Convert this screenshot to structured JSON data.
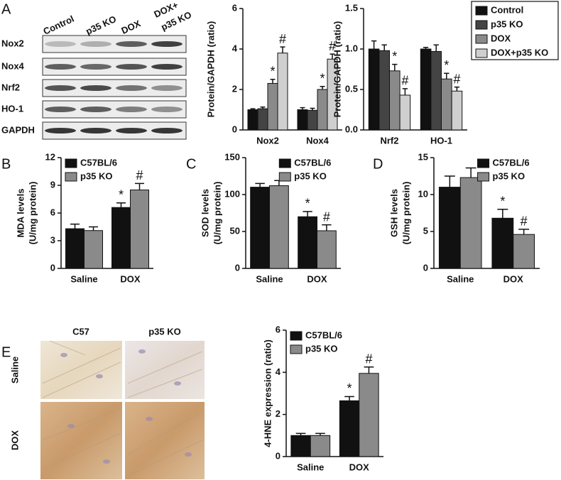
{
  "panel_labels": [
    "A",
    "B",
    "C",
    "D",
    "E"
  ],
  "blot": {
    "columns": [
      [
        "Control"
      ],
      [
        "p35 KO"
      ],
      [
        "DOX"
      ],
      [
        "DOX+",
        "p35 KO"
      ]
    ],
    "rows": [
      "Nox2",
      "Nox4",
      "Nrf2",
      "HO-1",
      "GAPDH"
    ]
  },
  "histology": {
    "columns": [
      "C57",
      "p35 KO"
    ],
    "rows": [
      "Saline",
      "DOX"
    ]
  },
  "chart_data": [
    {
      "type": "bar",
      "ylabel": [
        "Protein/GAPDH (ratio)"
      ],
      "categories": [
        "Nox2",
        "Nox4"
      ],
      "ylim": [
        0,
        6
      ],
      "yticks": [
        0,
        2,
        4,
        6
      ],
      "legend": "none",
      "series": [
        {
          "color": "#111111",
          "values": [
            1.0,
            1.0
          ],
          "errors": [
            0.05,
            0.1
          ],
          "annotations": [
            null,
            null
          ]
        },
        {
          "color": "#444444",
          "values": [
            1.05,
            0.97
          ],
          "errors": [
            0.08,
            0.1
          ],
          "annotations": [
            null,
            null
          ]
        },
        {
          "color": "#8a8a8a",
          "values": [
            2.3,
            2.0
          ],
          "errors": [
            0.2,
            0.15
          ],
          "annotations": [
            "*",
            "*"
          ]
        },
        {
          "color": "#cfcfcf",
          "values": [
            3.8,
            3.5
          ],
          "errors": [
            0.3,
            0.25
          ],
          "annotations": [
            "#",
            "#"
          ]
        }
      ]
    },
    {
      "type": "bar",
      "ylabel": [
        "Protein/GAPDH (ratio)"
      ],
      "categories": [
        "Nrf2",
        "HO-1"
      ],
      "ylim": [
        0,
        1.5
      ],
      "yticks": [
        {
          "value": 0,
          "label": "0.0"
        },
        0.5,
        {
          "value": 1,
          "label": "1.0"
        },
        1.5
      ],
      "legend": "outside-right",
      "series": [
        {
          "name": "Control",
          "color": "#111111",
          "values": [
            1.0,
            1.0
          ],
          "errors": [
            0.1,
            0.02
          ],
          "annotations": [
            null,
            null
          ]
        },
        {
          "name": "p35 KO",
          "color": "#444444",
          "values": [
            0.98,
            0.97
          ],
          "errors": [
            0.07,
            0.08
          ],
          "annotations": [
            null,
            null
          ]
        },
        {
          "name": "DOX",
          "color": "#8a8a8a",
          "values": [
            0.73,
            0.63
          ],
          "errors": [
            0.08,
            0.07
          ],
          "annotations": [
            "*",
            "*"
          ]
        },
        {
          "name": "DOX+p35 KO",
          "color": "#cfcfcf",
          "values": [
            0.43,
            0.48
          ],
          "errors": [
            0.08,
            0.05
          ],
          "annotations": [
            "#",
            "#"
          ]
        }
      ]
    },
    {
      "type": "bar",
      "ylabel": [
        "MDA levels",
        "(U/mg protein)"
      ],
      "categories": [
        "Saline",
        "DOX"
      ],
      "ylim": [
        0,
        12
      ],
      "yticks": [
        0,
        3,
        6,
        9,
        12
      ],
      "legend": "top-left",
      "series": [
        {
          "name": "C57BL/6",
          "color": "#111111",
          "values": [
            4.3,
            6.6
          ],
          "errors": [
            0.5,
            0.5
          ],
          "annotations": [
            null,
            "*"
          ]
        },
        {
          "name": "p35 KO",
          "color": "#8a8a8a",
          "values": [
            4.1,
            8.5
          ],
          "errors": [
            0.4,
            0.7
          ],
          "annotations": [
            null,
            "#"
          ]
        }
      ]
    },
    {
      "type": "bar",
      "ylabel": [
        "SOD levels",
        "(U/mg protein)"
      ],
      "categories": [
        "Saline",
        "DOX"
      ],
      "ylim": [
        0,
        150
      ],
      "yticks": [
        0,
        50,
        100,
        150
      ],
      "legend": "top-right",
      "series": [
        {
          "name": "C57BL/6",
          "color": "#111111",
          "values": [
            110,
            70
          ],
          "errors": [
            5,
            7
          ],
          "annotations": [
            null,
            "*"
          ]
        },
        {
          "name": "p35 KO",
          "color": "#8a8a8a",
          "values": [
            112,
            51
          ],
          "errors": [
            7,
            8
          ],
          "annotations": [
            null,
            "#"
          ]
        }
      ]
    },
    {
      "type": "bar",
      "ylabel": [
        "GSH levels",
        "(U/mg protein)"
      ],
      "categories": [
        "Saline",
        "DOX"
      ],
      "ylim": [
        0,
        15
      ],
      "yticks": [
        0,
        5,
        10,
        15
      ],
      "legend": "top-right",
      "series": [
        {
          "name": "C57BL/6",
          "color": "#111111",
          "values": [
            11,
            6.8
          ],
          "errors": [
            1.5,
            1.2
          ],
          "annotations": [
            null,
            "*"
          ]
        },
        {
          "name": "p35 KO",
          "color": "#8a8a8a",
          "values": [
            12.3,
            4.6
          ],
          "errors": [
            1.3,
            0.7
          ],
          "annotations": [
            null,
            "#"
          ]
        }
      ]
    },
    {
      "type": "bar",
      "ylabel": [
        "4-HNE expression (ratio)"
      ],
      "categories": [
        "Saline",
        "DOX"
      ],
      "ylim": [
        0,
        6
      ],
      "yticks": [
        0,
        2,
        4,
        6
      ],
      "legend": "top-left",
      "series": [
        {
          "name": "C57BL/6",
          "color": "#111111",
          "values": [
            1.0,
            2.65
          ],
          "errors": [
            0.1,
            0.2
          ],
          "annotations": [
            null,
            "*"
          ]
        },
        {
          "name": "p35 KO",
          "color": "#8a8a8a",
          "values": [
            1.0,
            3.95
          ],
          "errors": [
            0.1,
            0.3
          ],
          "annotations": [
            null,
            "#"
          ]
        }
      ]
    }
  ]
}
